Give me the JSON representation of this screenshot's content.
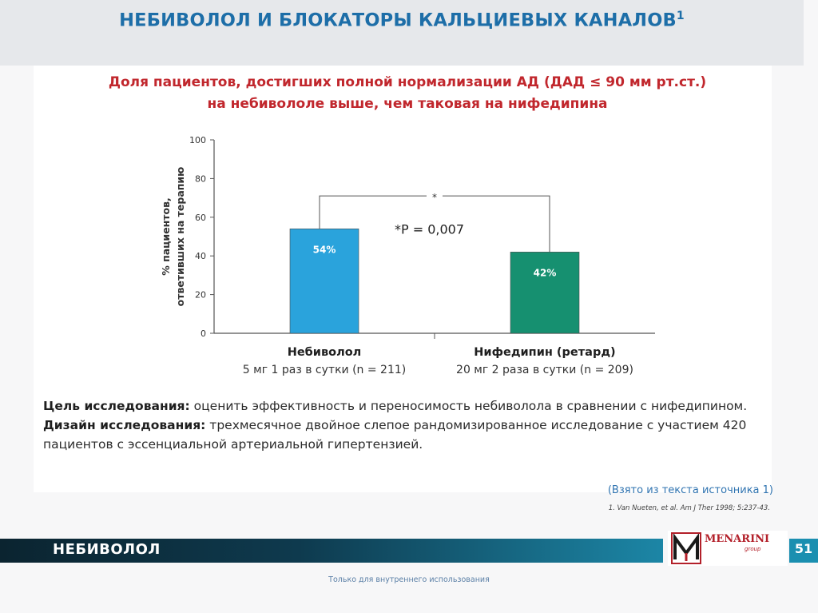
{
  "slide": {
    "title": "НЕБИВОЛОЛ И БЛОКАТОРЫ КАЛЬЦИЕВЫХ КАНАЛОВ",
    "title_superscript": "1",
    "subtitle_line1": "Доля пациентов, достигших полной нормализации АД (ДАД ≤ 90 мм рт.ст.)",
    "subtitle_line2": "на небивололе выше, чем таковая на нифедипина"
  },
  "chart_data": {
    "type": "bar",
    "categories": [
      "Небиволол",
      "Нифедипин (ретард)"
    ],
    "category_details": [
      "5 мг 1 раз в сутки (n = 211)",
      "20 мг 2 раза в сутки (n = 209)"
    ],
    "values": [
      54,
      42
    ],
    "data_labels": [
      "54%",
      "42%"
    ],
    "bar_colors": [
      "#2aa3dc",
      "#169070"
    ],
    "ylabel_line1": "% пациентов,",
    "ylabel_line2": "ответивших на терапию",
    "ylim": [
      0,
      100
    ],
    "yticks": [
      0,
      20,
      40,
      60,
      80,
      100
    ],
    "significance_marker": "*",
    "annotation": "*P = 0,007",
    "grid": false
  },
  "description": {
    "goal_label": "Цель исследования:",
    "goal_text": " оценить эффективность и переносимость небиволола в сравнении с нифедипином.",
    "design_label": "Дизайн исследования:",
    "design_text": " трехмесячное двойное слепое рандомизированное исследование с участием 420 пациентов с эссенциальной артериальной гипертензией."
  },
  "source": {
    "note": "(Взято из текста источника 1)",
    "reference": "1. Van Nueten, et al. Am J Ther 1998; 5:237-43."
  },
  "footer": {
    "label": "НЕБИВОЛОЛ",
    "brand": "MENARINI",
    "brand_sub": "group",
    "page_number": "51",
    "confidential": "Только для внутреннего использования"
  },
  "colors": {
    "title": "#1d6ea8",
    "subtitle": "#c1272d",
    "footer_dark": "#0b2430",
    "footer_accent": "#1b8fb0",
    "brand": "#b3202a"
  }
}
